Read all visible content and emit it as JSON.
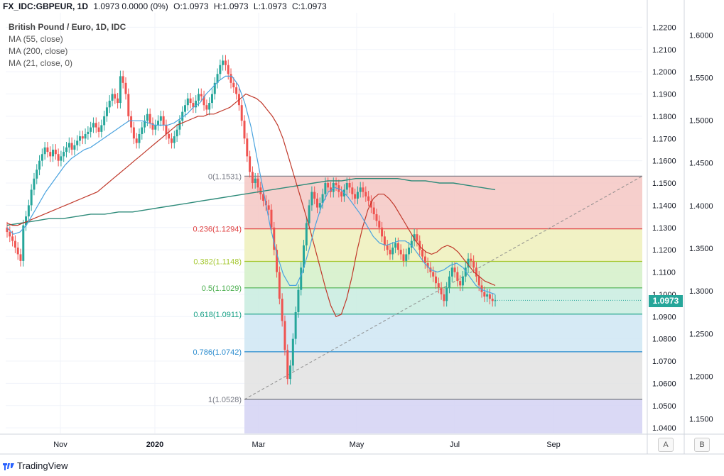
{
  "header": {
    "symbol": "FX_IDC:GBPEUR, 1D",
    "values": "1.0973 0.0000 (0%)",
    "open": "O:1.0973",
    "high": "H:1.0973",
    "low": "L:1.0973",
    "close": "C:1.0973"
  },
  "legend": {
    "title": "British Pound / Euro, 1D, IDC",
    "ma1": "MA (55, close)",
    "ma2": "MA (200, close)",
    "ma3": "MA (21, close, 0)"
  },
  "footer": {
    "brand": "TradingView"
  },
  "buttons": {
    "a": "A",
    "b": "B"
  },
  "price_tag": "1.0973",
  "colors": {
    "up": "#26a69a",
    "down": "#ef5350",
    "ma55": "#2e8b7a",
    "ma200": "#c0392b",
    "ma21": "#4aa3df"
  },
  "chart_data": {
    "type": "candlestick",
    "x_tick_labels": [
      "Nov",
      "2020",
      "Mar",
      "May",
      "Jul",
      "Sep"
    ],
    "y_axis_a": [
      "1.2200",
      "1.2100",
      "1.2000",
      "1.1900",
      "1.1800",
      "1.1700",
      "1.1600",
      "1.1500",
      "1.1400",
      "1.1300",
      "1.1200",
      "1.1100",
      "1.1000",
      "1.0900",
      "1.0800",
      "1.0700",
      "1.0600",
      "1.0500",
      "1.0400"
    ],
    "y_axis_b": [
      "1.6000",
      "1.5500",
      "1.5000",
      "1.4500",
      "1.4000",
      "1.3500",
      "1.3000",
      "1.2500",
      "1.2000",
      "1.1500"
    ],
    "ylim": [
      1.0375,
      1.2265
    ],
    "fib_levels": [
      {
        "label": "0(1.1531)",
        "value": 1.1531,
        "color": "#787b86",
        "fill": "#f4c7c3"
      },
      {
        "label": "0.236(1.1294)",
        "value": 1.1294,
        "color": "#e04040",
        "fill": "#eef0bb"
      },
      {
        "label": "0.382(1.1148)",
        "value": 1.1148,
        "color": "#a6c832",
        "fill": "#d3f0c8"
      },
      {
        "label": "0.5(1.1029)",
        "value": 1.1029,
        "color": "#4caf50",
        "fill": "#c8ecdf"
      },
      {
        "label": "0.618(1.0911)",
        "value": 1.0911,
        "color": "#16a085",
        "fill": "#cfe6f3"
      },
      {
        "label": "0.786(1.0742)",
        "value": 1.0742,
        "color": "#2b8ccf",
        "fill": "#e2e2e2"
      },
      {
        "label": "1(1.0528)",
        "value": 1.0528,
        "color": "#787b86",
        "fill": "#d4d2f3"
      }
    ],
    "series_close": [
      1.128,
      1.126,
      1.124,
      1.121,
      1.118,
      1.115,
      1.131,
      1.135,
      1.14,
      1.147,
      1.152,
      1.156,
      1.16,
      1.163,
      1.166,
      1.164,
      1.162,
      1.165,
      1.163,
      1.16,
      1.162,
      1.164,
      1.166,
      1.168,
      1.165,
      1.167,
      1.169,
      1.171,
      1.17,
      1.172,
      1.173,
      1.175,
      1.177,
      1.175,
      1.173,
      1.176,
      1.18,
      1.184,
      1.187,
      1.19,
      1.188,
      1.186,
      1.198,
      1.195,
      1.19,
      1.18,
      1.175,
      1.17,
      1.168,
      1.172,
      1.175,
      1.178,
      1.181,
      1.177,
      1.174,
      1.176,
      1.178,
      1.18,
      1.176,
      1.172,
      1.17,
      1.168,
      1.171,
      1.174,
      1.178,
      1.182,
      1.185,
      1.188,
      1.186,
      1.184,
      1.187,
      1.19,
      1.189,
      1.185,
      1.183,
      1.186,
      1.19,
      1.195,
      1.199,
      1.203,
      1.205,
      1.203,
      1.199,
      1.195,
      1.193,
      1.19,
      1.185,
      1.178,
      1.17,
      1.162,
      1.155,
      1.15,
      1.152,
      1.148,
      1.145,
      1.142,
      1.14,
      1.138,
      1.13,
      1.12,
      1.11,
      1.098,
      1.088,
      1.075,
      1.062,
      1.068,
      1.08,
      1.092,
      1.102,
      1.112,
      1.122,
      1.132,
      1.14,
      1.146,
      1.143,
      1.139,
      1.141,
      1.145,
      1.15,
      1.148,
      1.146,
      1.15,
      1.149,
      1.146,
      1.144,
      1.147,
      1.15,
      1.148,
      1.145,
      1.143,
      1.146,
      1.148,
      1.146,
      1.144,
      1.142,
      1.139,
      1.136,
      1.133,
      1.13,
      1.126,
      1.122,
      1.12,
      1.118,
      1.121,
      1.123,
      1.12,
      1.118,
      1.115,
      1.118,
      1.121,
      1.124,
      1.127,
      1.124,
      1.12,
      1.117,
      1.114,
      1.112,
      1.11,
      1.108,
      1.105,
      1.103,
      1.1,
      1.097,
      1.103,
      1.108,
      1.112,
      1.11,
      1.106,
      1.104,
      1.108,
      1.112,
      1.116,
      1.115,
      1.112,
      1.108,
      1.104,
      1.101,
      1.099,
      1.1,
      1.098,
      1.097,
      1.0973
    ],
    "ma55": [
      1.132,
      1.131,
      1.131,
      1.132,
      1.133,
      1.134,
      1.135,
      1.136,
      1.137,
      1.138,
      1.139,
      1.14,
      1.141,
      1.142,
      1.143,
      1.144,
      1.145,
      1.146,
      1.148,
      1.15,
      1.152,
      1.154,
      1.156,
      1.158,
      1.16,
      1.162,
      1.164,
      1.166,
      1.168,
      1.17,
      1.172,
      1.174,
      1.176,
      1.177,
      1.178,
      1.179,
      1.18,
      1.18,
      1.181,
      1.181,
      1.182,
      1.183,
      1.184,
      1.186,
      1.188,
      1.19,
      1.189,
      1.188,
      1.186,
      1.183,
      1.18,
      1.176,
      1.17,
      1.162,
      1.154,
      1.146,
      1.138,
      1.13,
      1.121,
      1.112,
      1.103,
      1.095,
      1.09,
      1.091,
      1.098,
      1.108,
      1.12,
      1.13,
      1.138,
      1.143,
      1.145,
      1.145,
      1.143,
      1.14,
      1.136,
      1.132,
      1.128,
      1.124,
      1.121,
      1.119,
      1.118,
      1.119,
      1.121,
      1.122,
      1.121,
      1.119,
      1.116,
      1.113,
      1.11,
      1.108,
      1.106,
      1.105,
      1.104
    ],
    "ma200": [
      1.131,
      1.132,
      1.133,
      1.134,
      1.134,
      1.135,
      1.136,
      1.136,
      1.137,
      1.137,
      1.138,
      1.139,
      1.14,
      1.141,
      1.142,
      1.143,
      1.144,
      1.145,
      1.146,
      1.147,
      1.148,
      1.149,
      1.15,
      1.151,
      1.151,
      1.152,
      1.152,
      1.152,
      1.152,
      1.151,
      1.151,
      1.15,
      1.15,
      1.149,
      1.148,
      1.147
    ],
    "ma21": [
      1.13,
      1.127,
      1.128,
      1.131,
      1.136,
      1.141,
      1.146,
      1.15,
      1.154,
      1.158,
      1.161,
      1.163,
      1.165,
      1.166,
      1.168,
      1.17,
      1.172,
      1.174,
      1.176,
      1.178,
      1.178,
      1.178,
      1.177,
      1.176,
      1.176,
      1.176,
      1.177,
      1.179,
      1.181,
      1.184,
      1.186,
      1.19,
      1.193,
      1.196,
      1.198,
      1.198,
      1.194,
      1.186,
      1.175,
      1.16,
      1.145,
      1.13,
      1.118,
      1.109,
      1.104,
      1.104,
      1.11,
      1.12,
      1.131,
      1.14,
      1.146,
      1.148,
      1.147,
      1.144,
      1.14,
      1.136,
      1.131,
      1.126,
      1.123,
      1.122,
      1.123,
      1.124,
      1.124,
      1.122,
      1.118,
      1.114,
      1.111,
      1.11,
      1.111,
      1.113,
      1.114,
      1.112,
      1.108,
      1.104,
      1.102,
      1.101,
      1.1
    ]
  }
}
